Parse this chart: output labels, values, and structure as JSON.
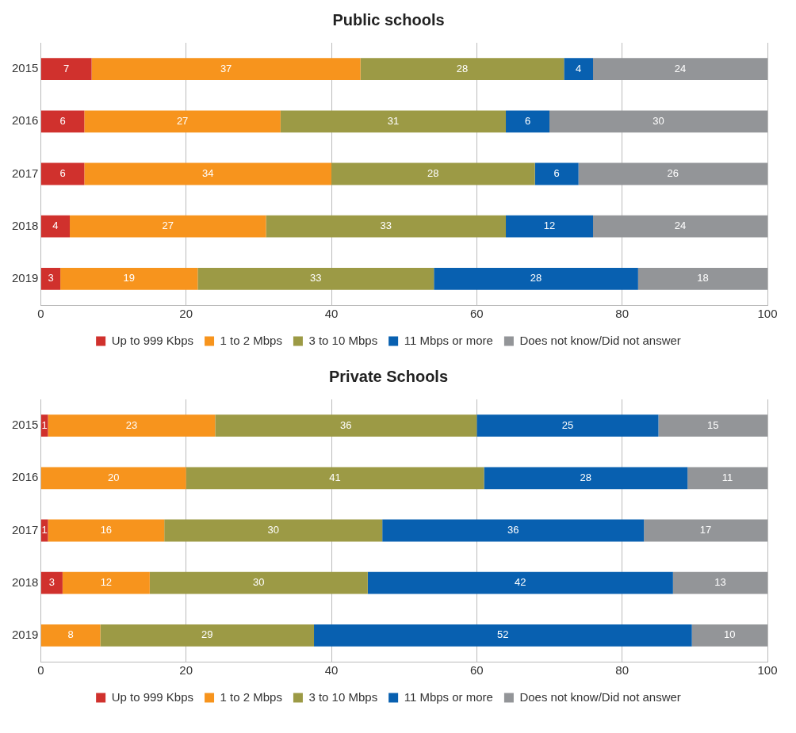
{
  "chart_data": [
    {
      "type": "bar",
      "title": "Public schools",
      "orientation": "horizontal",
      "stacked": true,
      "categories": [
        "2015",
        "2016",
        "2017",
        "2018",
        "2019"
      ],
      "series": [
        {
          "name": "Up to 999 Kbps",
          "color": "#d0312d",
          "values": [
            7,
            6,
            6,
            4,
            2.7
          ],
          "value_labels": [
            "7",
            "6",
            "6",
            "4",
            "3"
          ]
        },
        {
          "name": "1 to 2 Mbps",
          "color": "#f7941d",
          "values": [
            37,
            27,
            34,
            27,
            18.9
          ],
          "value_labels": [
            "37",
            "27",
            "34",
            "27",
            "19"
          ]
        },
        {
          "name": "3 to 10 Mbps",
          "color": "#9c9a45",
          "values": [
            28,
            31,
            28,
            33,
            32.5
          ],
          "value_labels": [
            "28",
            "31",
            "28",
            "33",
            "33"
          ]
        },
        {
          "name": "11 Mbps or more",
          "color": "#0860b0",
          "values": [
            4,
            6,
            6,
            12,
            28.1
          ],
          "value_labels": [
            "4",
            "6",
            "6",
            "12",
            "28"
          ]
        },
        {
          "name": "Does not know/Did not answer",
          "color": "#939598",
          "values": [
            24,
            30,
            26,
            24,
            17.8
          ],
          "value_labels": [
            "24",
            "30",
            "26",
            "24",
            "18"
          ]
        }
      ],
      "xlim": [
        0,
        100
      ],
      "xticks": [
        0,
        20,
        40,
        60,
        80,
        100
      ],
      "grid": "x",
      "legend": "bottom"
    },
    {
      "type": "bar",
      "title": "Private Schools",
      "orientation": "horizontal",
      "stacked": true,
      "categories": [
        "2015",
        "2016",
        "2017",
        "2018",
        "2019"
      ],
      "series": [
        {
          "name": "Up to 999 Kbps",
          "color": "#d0312d",
          "values": [
            1,
            null,
            1,
            3,
            null
          ],
          "value_labels": [
            "1",
            null,
            "1",
            "3",
            null
          ]
        },
        {
          "name": "1 to 2 Mbps",
          "color": "#f7941d",
          "values": [
            23,
            20,
            16,
            12,
            8.2
          ],
          "value_labels": [
            "23",
            "20",
            "16",
            "12",
            "8"
          ]
        },
        {
          "name": "3 to 10 Mbps",
          "color": "#9c9a45",
          "values": [
            36,
            41,
            30,
            30,
            29.4
          ],
          "value_labels": [
            "36",
            "41",
            "30",
            "30",
            "29"
          ]
        },
        {
          "name": "11 Mbps or more",
          "color": "#0860b0",
          "values": [
            25,
            28,
            36,
            42,
            52.0
          ],
          "value_labels": [
            "25",
            "28",
            "36",
            "42",
            "52"
          ]
        },
        {
          "name": "Does not know/Did not answer",
          "color": "#939598",
          "values": [
            15,
            11,
            17,
            13,
            10.4
          ],
          "value_labels": [
            "15",
            "11",
            "17",
            "13",
            "10"
          ]
        }
      ],
      "xlim": [
        0,
        100
      ],
      "xticks": [
        0,
        20,
        40,
        60,
        80,
        100
      ],
      "grid": "x",
      "legend": "bottom"
    }
  ]
}
